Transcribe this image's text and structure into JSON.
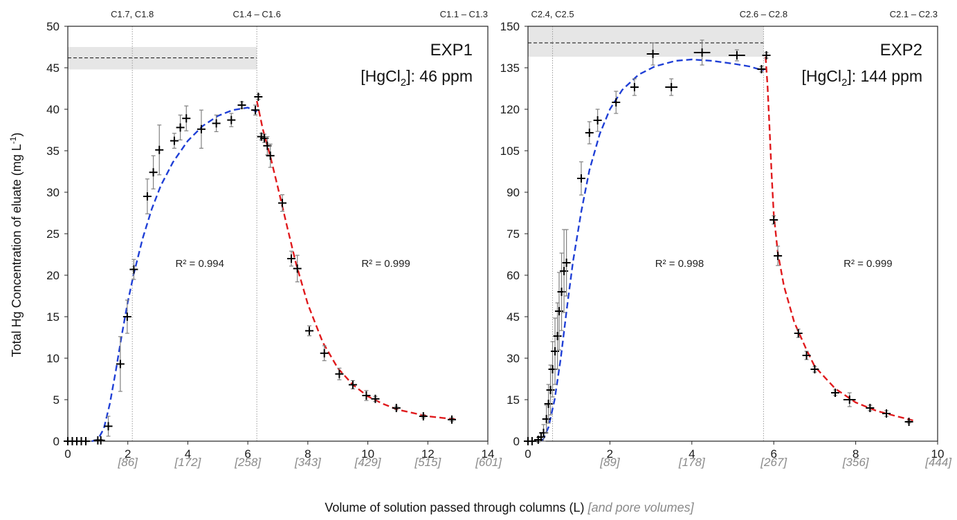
{
  "colors": {
    "fit_rise": "#1f3fd6",
    "fit_fall": "#e0191c",
    "points": "#000000",
    "error_bars": "#808080",
    "input_band": "#e6e6e6",
    "frame": "#222222",
    "guide_lines": "#9a9a9a",
    "pore_volume_labels": "#8a8a8a"
  },
  "axes": {
    "ylabel_main": "Total Hg Concentration of eluate (mg L",
    "ylabel_exp": "-1",
    "ylabel_tail": ")",
    "xlabel_main": "Volume of solution passed through columns (L)",
    "xlabel_bracket": "[and pore volumes]"
  },
  "chart_data": [
    {
      "type": "scatter",
      "title": "EXP1",
      "concentration": {
        "prefix": "[HgCl",
        "subscript": "2",
        "suffix": "]: 46 ppm"
      },
      "xlim": [
        0,
        14
      ],
      "ylim": [
        0,
        50
      ],
      "x_ticks": [
        "0",
        "2",
        "4",
        "6",
        "8",
        "10",
        "12",
        "14"
      ],
      "y_ticks": [
        "0",
        "5",
        "10",
        "15",
        "20",
        "25",
        "30",
        "35",
        "40",
        "45",
        "50"
      ],
      "pore_volume_ticks": [
        {
          "x": 2,
          "label": "[86]"
        },
        {
          "x": 4,
          "label": "[172]"
        },
        {
          "x": 6,
          "label": "[258]"
        },
        {
          "x": 8,
          "label": "[343]"
        },
        {
          "x": 10,
          "label": "[429]"
        },
        {
          "x": 12,
          "label": "[515]"
        },
        {
          "x": 14,
          "label": "[601]"
        }
      ],
      "sampling_markers": [
        {
          "x": 2.15,
          "label": "C1.7, C1.8"
        },
        {
          "x": 6.3,
          "label": "C1.4 – C1.6"
        },
        {
          "x": 14,
          "label": "C1.1 – C1.3"
        }
      ],
      "input_level": {
        "value": 46.2,
        "band": [
          44.8,
          47.5
        ],
        "x_end": 6.3
      },
      "series": [
        {
          "points": [
            {
              "x": 0.0,
              "y": 0.0,
              "ey": 0.0,
              "ex": 0.0
            },
            {
              "x": 0.15,
              "y": 0.0,
              "ey": 0.0,
              "ex": 0.0
            },
            {
              "x": 0.3,
              "y": 0.0,
              "ey": 0.0,
              "ex": 0.0
            },
            {
              "x": 0.45,
              "y": 0.0,
              "ey": 0.0,
              "ex": 0.0
            },
            {
              "x": 0.6,
              "y": 0.0,
              "ey": 0.0,
              "ex": 0.0
            },
            {
              "x": 1.0,
              "y": 0.1,
              "ey": 0.1,
              "ex": 0.1
            },
            {
              "x": 1.1,
              "y": 0.1,
              "ey": 0.1,
              "ex": 0.1
            },
            {
              "x": 1.35,
              "y": 1.8,
              "ey": 1.2,
              "ex": 0.1
            },
            {
              "x": 1.75,
              "y": 9.3,
              "ey": 3.3,
              "ex": 0.1
            },
            {
              "x": 1.98,
              "y": 15.0,
              "ey": 2.0,
              "ex": 0.1
            },
            {
              "x": 2.2,
              "y": 20.7,
              "ey": 1.2,
              "ex": 0.1
            },
            {
              "x": 2.65,
              "y": 29.5,
              "ey": 2.1,
              "ex": 0.1
            },
            {
              "x": 2.85,
              "y": 32.4,
              "ey": 2.0,
              "ex": 0.1
            },
            {
              "x": 3.05,
              "y": 35.1,
              "ey": 3.0,
              "ex": 0.1
            },
            {
              "x": 3.55,
              "y": 36.2,
              "ey": 0.9,
              "ex": 0.1
            },
            {
              "x": 3.75,
              "y": 37.8,
              "ey": 1.5,
              "ex": 0.1
            },
            {
              "x": 3.95,
              "y": 38.9,
              "ey": 1.5,
              "ex": 0.1
            },
            {
              "x": 4.45,
              "y": 37.6,
              "ey": 2.3,
              "ex": 0.1
            },
            {
              "x": 4.95,
              "y": 38.3,
              "ey": 1.0,
              "ex": 0.1
            },
            {
              "x": 5.45,
              "y": 38.7,
              "ey": 0.8,
              "ex": 0.1
            },
            {
              "x": 5.8,
              "y": 40.5,
              "ey": 0.4,
              "ex": 0.1
            },
            {
              "x": 6.25,
              "y": 39.9,
              "ey": 0.6,
              "ex": 0.1
            },
            {
              "x": 6.35,
              "y": 41.5,
              "ey": 0.3,
              "ex": 0.1
            },
            {
              "x": 6.45,
              "y": 36.7,
              "ey": 0.4,
              "ex": 0.1
            },
            {
              "x": 6.55,
              "y": 36.5,
              "ey": 0.5,
              "ex": 0.1
            },
            {
              "x": 6.65,
              "y": 35.6,
              "ey": 1.1,
              "ex": 0.1
            },
            {
              "x": 6.75,
              "y": 34.4,
              "ey": 1.4,
              "ex": 0.1
            },
            {
              "x": 7.15,
              "y": 28.7,
              "ey": 1.0,
              "ex": 0.1
            },
            {
              "x": 7.45,
              "y": 22.0,
              "ey": 0.9,
              "ex": 0.1
            },
            {
              "x": 7.65,
              "y": 20.8,
              "ey": 1.6,
              "ex": 0.1
            },
            {
              "x": 8.05,
              "y": 13.3,
              "ey": 0.6,
              "ex": 0.1
            },
            {
              "x": 8.55,
              "y": 10.6,
              "ey": 0.9,
              "ex": 0.1
            },
            {
              "x": 9.05,
              "y": 8.1,
              "ey": 0.7,
              "ex": 0.1
            },
            {
              "x": 9.5,
              "y": 6.8,
              "ey": 0.5,
              "ex": 0.1
            },
            {
              "x": 9.95,
              "y": 5.5,
              "ey": 0.6,
              "ex": 0.1
            },
            {
              "x": 10.25,
              "y": 5.1,
              "ey": 0.3,
              "ex": 0.1
            },
            {
              "x": 10.95,
              "y": 4.0,
              "ey": 0.2,
              "ex": 0.1
            },
            {
              "x": 11.85,
              "y": 3.0,
              "ey": 0.2,
              "ex": 0.1
            },
            {
              "x": 12.8,
              "y": 2.6,
              "ey": 0.2,
              "ex": 0.1
            }
          ]
        }
      ],
      "fits": [
        {
          "segment": "rise",
          "r2": "R² = 0.994",
          "r2_at": {
            "x": 4.4,
            "y": 21.0
          },
          "points": [
            [
              0.8,
              0.0
            ],
            [
              1.0,
              0.2
            ],
            [
              1.2,
              1.5
            ],
            [
              1.4,
              4.5
            ],
            [
              1.6,
              8.5
            ],
            [
              1.8,
              12.8
            ],
            [
              2.0,
              16.8
            ],
            [
              2.2,
              20.2
            ],
            [
              2.5,
              24.5
            ],
            [
              2.8,
              28.0
            ],
            [
              3.1,
              30.8
            ],
            [
              3.5,
              33.6
            ],
            [
              4.0,
              36.2
            ],
            [
              4.5,
              38.0
            ],
            [
              5.0,
              39.2
            ],
            [
              5.5,
              39.9
            ],
            [
              6.0,
              40.2
            ],
            [
              6.3,
              39.7
            ]
          ]
        },
        {
          "segment": "fall",
          "r2": "R² = 0.999",
          "r2_at": {
            "x": 10.6,
            "y": 21.0
          },
          "points": [
            [
              6.3,
              41.0
            ],
            [
              6.5,
              37.6
            ],
            [
              6.75,
              34.3
            ],
            [
              7.0,
              30.6
            ],
            [
              7.3,
              26.0
            ],
            [
              7.6,
              21.5
            ],
            [
              8.0,
              16.5
            ],
            [
              8.5,
              11.9
            ],
            [
              9.0,
              8.8
            ],
            [
              9.5,
              6.8
            ],
            [
              10.0,
              5.4
            ],
            [
              10.5,
              4.5
            ],
            [
              11.0,
              3.8
            ],
            [
              11.5,
              3.4
            ],
            [
              12.0,
              3.0
            ],
            [
              12.5,
              2.8
            ],
            [
              13.0,
              2.6
            ]
          ]
        }
      ]
    },
    {
      "type": "scatter",
      "title": "EXP2",
      "concentration": {
        "prefix": "[HgCl",
        "subscript": "2",
        "suffix": "]: 144 ppm"
      },
      "xlim": [
        0,
        10
      ],
      "ylim": [
        0,
        150
      ],
      "x_ticks": [
        "0",
        "2",
        "4",
        "6",
        "8",
        "10"
      ],
      "y_ticks": [
        "0",
        "15",
        "30",
        "45",
        "60",
        "75",
        "90",
        "105",
        "120",
        "135",
        "150"
      ],
      "pore_volume_ticks": [
        {
          "x": 2,
          "label": "[89]"
        },
        {
          "x": 4,
          "label": "[178]"
        },
        {
          "x": 6,
          "label": "[267]"
        },
        {
          "x": 8,
          "label": "[356]"
        },
        {
          "x": 10,
          "label": "[444]"
        }
      ],
      "sampling_markers": [
        {
          "x": 0.6,
          "label": "C2.4, C2.5"
        },
        {
          "x": 5.75,
          "label": "C2.6 – C2.8"
        },
        {
          "x": 10,
          "label": "C2.1 – C2.3"
        }
      ],
      "input_level": {
        "value": 144,
        "band": [
          139,
          150
        ],
        "x_end": 5.75
      },
      "series": [
        {
          "points": [
            {
              "x": 0.0,
              "y": 0.0,
              "ey": 0.0,
              "ex": 0.0
            },
            {
              "x": 0.1,
              "y": 0.0,
              "ey": 0.0,
              "ex": 0.0
            },
            {
              "x": 0.25,
              "y": 0.5,
              "ey": 0.8,
              "ex": 0.05
            },
            {
              "x": 0.32,
              "y": 1.5,
              "ey": 1.5,
              "ex": 0.05
            },
            {
              "x": 0.38,
              "y": 3.0,
              "ey": 3.0,
              "ex": 0.05
            },
            {
              "x": 0.45,
              "y": 8.0,
              "ey": 5.0,
              "ex": 0.05
            },
            {
              "x": 0.5,
              "y": 13.5,
              "ey": 7.0,
              "ex": 0.05
            },
            {
              "x": 0.55,
              "y": 18.5,
              "ey": 9.0,
              "ex": 0.05
            },
            {
              "x": 0.6,
              "y": 26.0,
              "ey": 10.0,
              "ex": 0.05
            },
            {
              "x": 0.66,
              "y": 32.5,
              "ey": 12.0,
              "ex": 0.05
            },
            {
              "x": 0.72,
              "y": 38.0,
              "ey": 12.0,
              "ex": 0.05
            },
            {
              "x": 0.76,
              "y": 47.0,
              "ey": 14.0,
              "ex": 0.05
            },
            {
              "x": 0.82,
              "y": 54.0,
              "ey": 14.0,
              "ex": 0.05
            },
            {
              "x": 0.88,
              "y": 61.5,
              "ey": 15.0,
              "ex": 0.05
            },
            {
              "x": 0.94,
              "y": 64.5,
              "ey": 12.0,
              "ex": 0.05
            },
            {
              "x": 1.3,
              "y": 95.0,
              "ey": 6.0,
              "ex": 0.08
            },
            {
              "x": 1.5,
              "y": 111.5,
              "ey": 4.0,
              "ex": 0.08
            },
            {
              "x": 1.7,
              "y": 116.0,
              "ey": 4.0,
              "ex": 0.08
            },
            {
              "x": 2.15,
              "y": 122.5,
              "ey": 4.0,
              "ex": 0.1
            },
            {
              "x": 2.6,
              "y": 128.0,
              "ey": 3.0,
              "ex": 0.1
            },
            {
              "x": 3.05,
              "y": 140.0,
              "ey": 4.0,
              "ex": 0.15
            },
            {
              "x": 3.5,
              "y": 128.0,
              "ey": 3.0,
              "ex": 0.15
            },
            {
              "x": 4.25,
              "y": 140.5,
              "ey": 4.5,
              "ex": 0.2
            },
            {
              "x": 5.1,
              "y": 139.5,
              "ey": 2.0,
              "ex": 0.2
            },
            {
              "x": 5.7,
              "y": 134.5,
              "ey": 1.0,
              "ex": 0.1
            },
            {
              "x": 5.82,
              "y": 139.5,
              "ey": 1.0,
              "ex": 0.1
            },
            {
              "x": 6.0,
              "y": 80.0,
              "ey": 1.5,
              "ex": 0.05
            },
            {
              "x": 6.1,
              "y": 67.0,
              "ey": 3.5,
              "ex": 0.05
            },
            {
              "x": 6.6,
              "y": 39.0,
              "ey": 1.5,
              "ex": 0.05
            },
            {
              "x": 6.8,
              "y": 31.0,
              "ey": 1.5,
              "ex": 0.05
            },
            {
              "x": 7.0,
              "y": 26.0,
              "ey": 1.0,
              "ex": 0.05
            },
            {
              "x": 7.5,
              "y": 17.5,
              "ey": 1.0,
              "ex": 0.05
            },
            {
              "x": 7.85,
              "y": 15.0,
              "ey": 2.5,
              "ex": 0.15
            },
            {
              "x": 8.35,
              "y": 12.0,
              "ey": 1.0,
              "ex": 0.1
            },
            {
              "x": 8.75,
              "y": 10.0,
              "ey": 1.0,
              "ex": 0.1
            },
            {
              "x": 9.3,
              "y": 7.0,
              "ey": 0.5,
              "ex": 0.05
            }
          ]
        }
      ],
      "fits": [
        {
          "segment": "rise",
          "r2": "R² = 0.998",
          "r2_at": {
            "x": 3.7,
            "y": 63.0
          },
          "points": [
            [
              0.35,
              0.0
            ],
            [
              0.5,
              5.0
            ],
            [
              0.65,
              15.0
            ],
            [
              0.8,
              30.0
            ],
            [
              0.95,
              48.0
            ],
            [
              1.1,
              65.0
            ],
            [
              1.3,
              83.0
            ],
            [
              1.5,
              98.0
            ],
            [
              1.75,
              111.0
            ],
            [
              2.0,
              120.0
            ],
            [
              2.3,
              127.0
            ],
            [
              2.7,
              132.5
            ],
            [
              3.1,
              135.5
            ],
            [
              3.6,
              137.5
            ],
            [
              4.0,
              138.0
            ],
            [
              4.5,
              137.5
            ],
            [
              5.0,
              136.5
            ],
            [
              5.4,
              135.5
            ],
            [
              5.75,
              134.0
            ]
          ]
        },
        {
          "segment": "fall",
          "r2": "R² = 0.999",
          "r2_at": {
            "x": 8.3,
            "y": 63.0
          },
          "points": [
            [
              5.8,
              139.0
            ],
            [
              5.85,
              128.0
            ],
            [
              5.9,
              112.0
            ],
            [
              5.95,
              96.0
            ],
            [
              6.0,
              82.0
            ],
            [
              6.1,
              68.0
            ],
            [
              6.25,
              56.0
            ],
            [
              6.5,
              43.0
            ],
            [
              6.8,
              33.0
            ],
            [
              7.0,
              27.0
            ],
            [
              7.5,
              19.0
            ],
            [
              8.0,
              14.0
            ],
            [
              8.5,
              11.0
            ],
            [
              9.0,
              9.0
            ],
            [
              9.4,
              7.5
            ]
          ]
        }
      ]
    }
  ]
}
